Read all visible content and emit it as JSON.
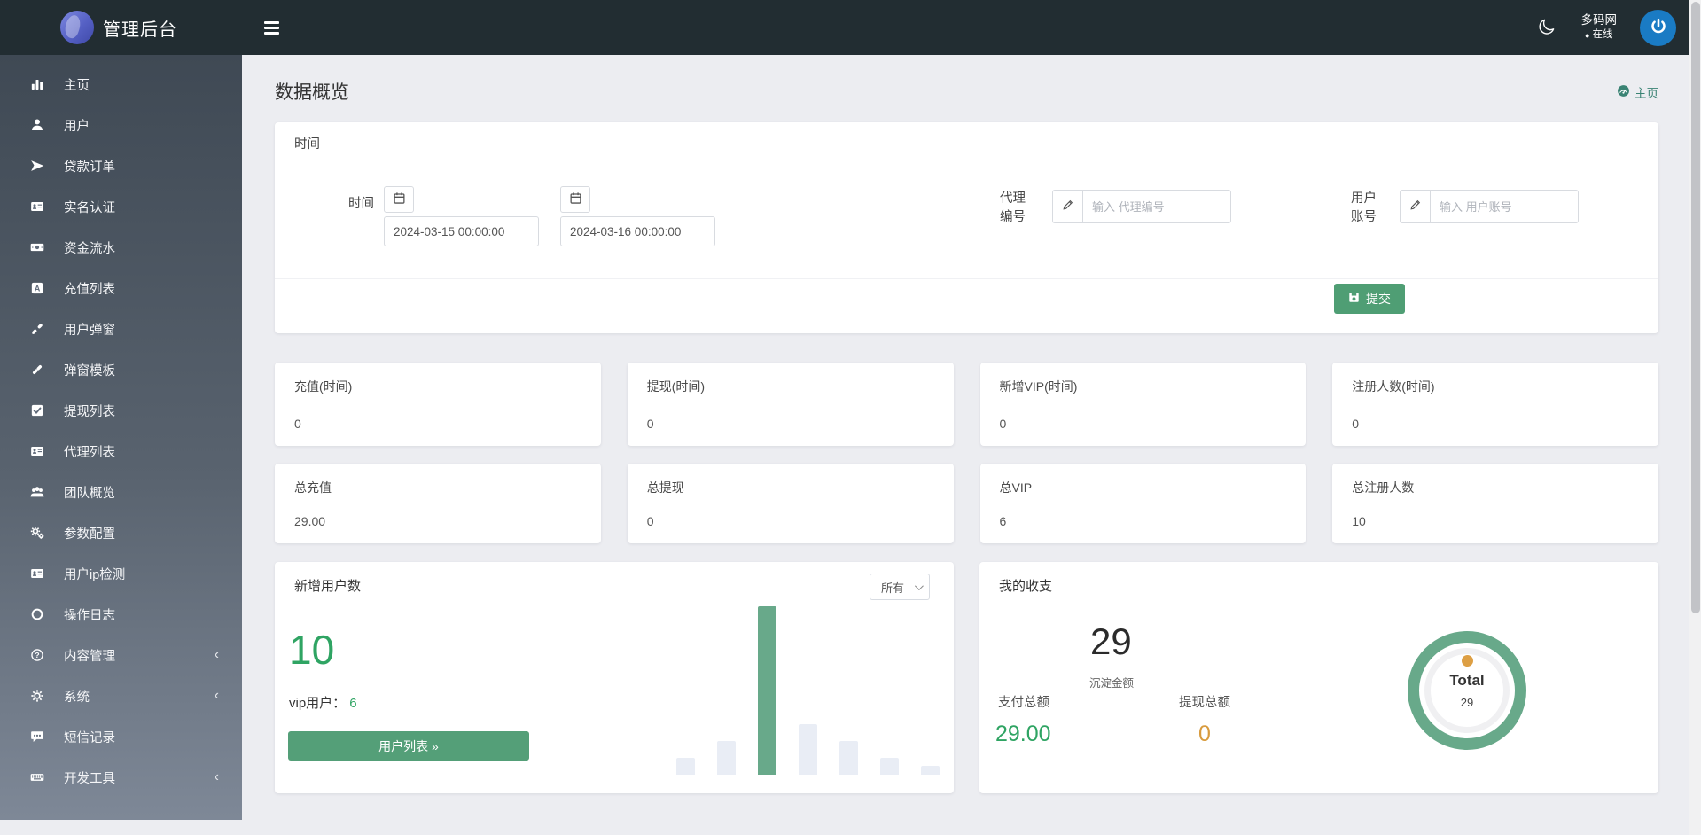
{
  "navbar": {
    "brand": "管理后台",
    "user_name": "多码网",
    "online_dot": "●",
    "online_label": "在线",
    "icons": [
      "moon-icon",
      "power-icon",
      "hamburger-icon",
      "logo-sphere"
    ]
  },
  "sidebar": {
    "submenu_chevron": "‹",
    "items": [
      {
        "id": "home",
        "label": "主页",
        "icon": "chart-bars"
      },
      {
        "id": "users",
        "label": "用户",
        "icon": "user"
      },
      {
        "id": "loan-orders",
        "label": "贷款订单",
        "icon": "jet"
      },
      {
        "id": "real-name-verify",
        "label": "实名认证",
        "icon": "id-card"
      },
      {
        "id": "fund-flow",
        "label": "资金流水",
        "icon": "money-bill"
      },
      {
        "id": "recharge-list",
        "label": "充值列表",
        "icon": "recharge-square"
      },
      {
        "id": "user-popup",
        "label": "用户弹窗",
        "icon": "chain-broken"
      },
      {
        "id": "popup-template",
        "label": "弹窗模板",
        "icon": "chain"
      },
      {
        "id": "withdraw-list",
        "label": "提现列表",
        "icon": "check-square"
      },
      {
        "id": "agent-list",
        "label": "代理列表",
        "icon": "id-card"
      },
      {
        "id": "team-overview",
        "label": "团队概览",
        "icon": "users-group"
      },
      {
        "id": "param-config",
        "label": "参数配置",
        "icon": "cogs"
      },
      {
        "id": "user-ip-check",
        "label": "用户ip检测",
        "icon": "id-card"
      },
      {
        "id": "operation-log",
        "label": "操作日志",
        "icon": "circle-o"
      },
      {
        "id": "content-manage",
        "label": "内容管理",
        "icon": "question-circle",
        "has_submenu": true
      },
      {
        "id": "system",
        "label": "系统",
        "icon": "gear",
        "has_submenu": true
      },
      {
        "id": "sms-records",
        "label": "短信记录",
        "icon": "comment"
      },
      {
        "id": "dev-tools",
        "label": "开发工具",
        "icon": "keyboard",
        "has_submenu": true
      }
    ]
  },
  "page": {
    "title": "数据概览",
    "breadcrumb": "主页"
  },
  "filter": {
    "header": "时间",
    "time_label": "时间",
    "date_from": "2024-03-15 00:00:00",
    "date_to": "2024-03-16 00:00:00",
    "agent_label": "代理编号",
    "agent_placeholder": "输入 代理编号",
    "account_label": "用户账号",
    "account_placeholder": "输入 用户账号",
    "submit_label": "提交"
  },
  "stats": {
    "row1": [
      {
        "title": "充值(时间)",
        "value": "0"
      },
      {
        "title": "提现(时间)",
        "value": "0"
      },
      {
        "title": "新增VIP(时间)",
        "value": "0"
      },
      {
        "title": "注册人数(时间)",
        "value": "0"
      }
    ],
    "row2": [
      {
        "title": "总充值",
        "value": "29.00"
      },
      {
        "title": "总提现",
        "value": "0"
      },
      {
        "title": "总VIP",
        "value": "6"
      },
      {
        "title": "总注册人数",
        "value": "10"
      }
    ]
  },
  "new_users": {
    "title": "新增用户数",
    "range_selected": "所有",
    "total": "10",
    "vip_label": "vip用户：",
    "vip_value": "6",
    "button_label": "用户列表 »"
  },
  "income": {
    "title": "我的收支",
    "deposit_value": "29",
    "deposit_label": "沉淀金额",
    "pay_label": "支付总额",
    "pay_value": "29.00",
    "withdraw_label": "提现总额",
    "withdraw_value": "0",
    "donut_center_label": "Total",
    "donut_center_value": "29"
  },
  "chart_data": [
    {
      "type": "bar",
      "title": "新增用户数",
      "values": [
        1,
        2,
        10,
        3,
        2,
        1,
        0.5
      ],
      "ymax": 10,
      "highlight_index": 2,
      "bar_color": "#e9edf5",
      "highlight_color": "#68a98a",
      "x_labels_visible": false,
      "y_axis_visible": false,
      "total_new_users": 10,
      "vip_users": 6
    },
    {
      "type": "pie",
      "title": "我的收支",
      "center_label": "Total",
      "center_value": 29,
      "segments": [
        {
          "name": "支付总额",
          "value": 29,
          "color": "#68a98a"
        },
        {
          "name": "提现总额",
          "value": 0,
          "color": "#dd9f44"
        }
      ]
    }
  ],
  "colors": {
    "navbar_bg": "#222d32",
    "sidebar_top": "#3f4954",
    "sidebar_bottom": "#7e8897",
    "accent_green": "#4f9e74",
    "sage_green": "#68a98a",
    "number_green": "#2fa463",
    "orange": "#d89b3e",
    "breadcrumb_green": "#3a8374",
    "avatar_blue": "#1a7bc4",
    "page_bg": "#ecedf1"
  }
}
